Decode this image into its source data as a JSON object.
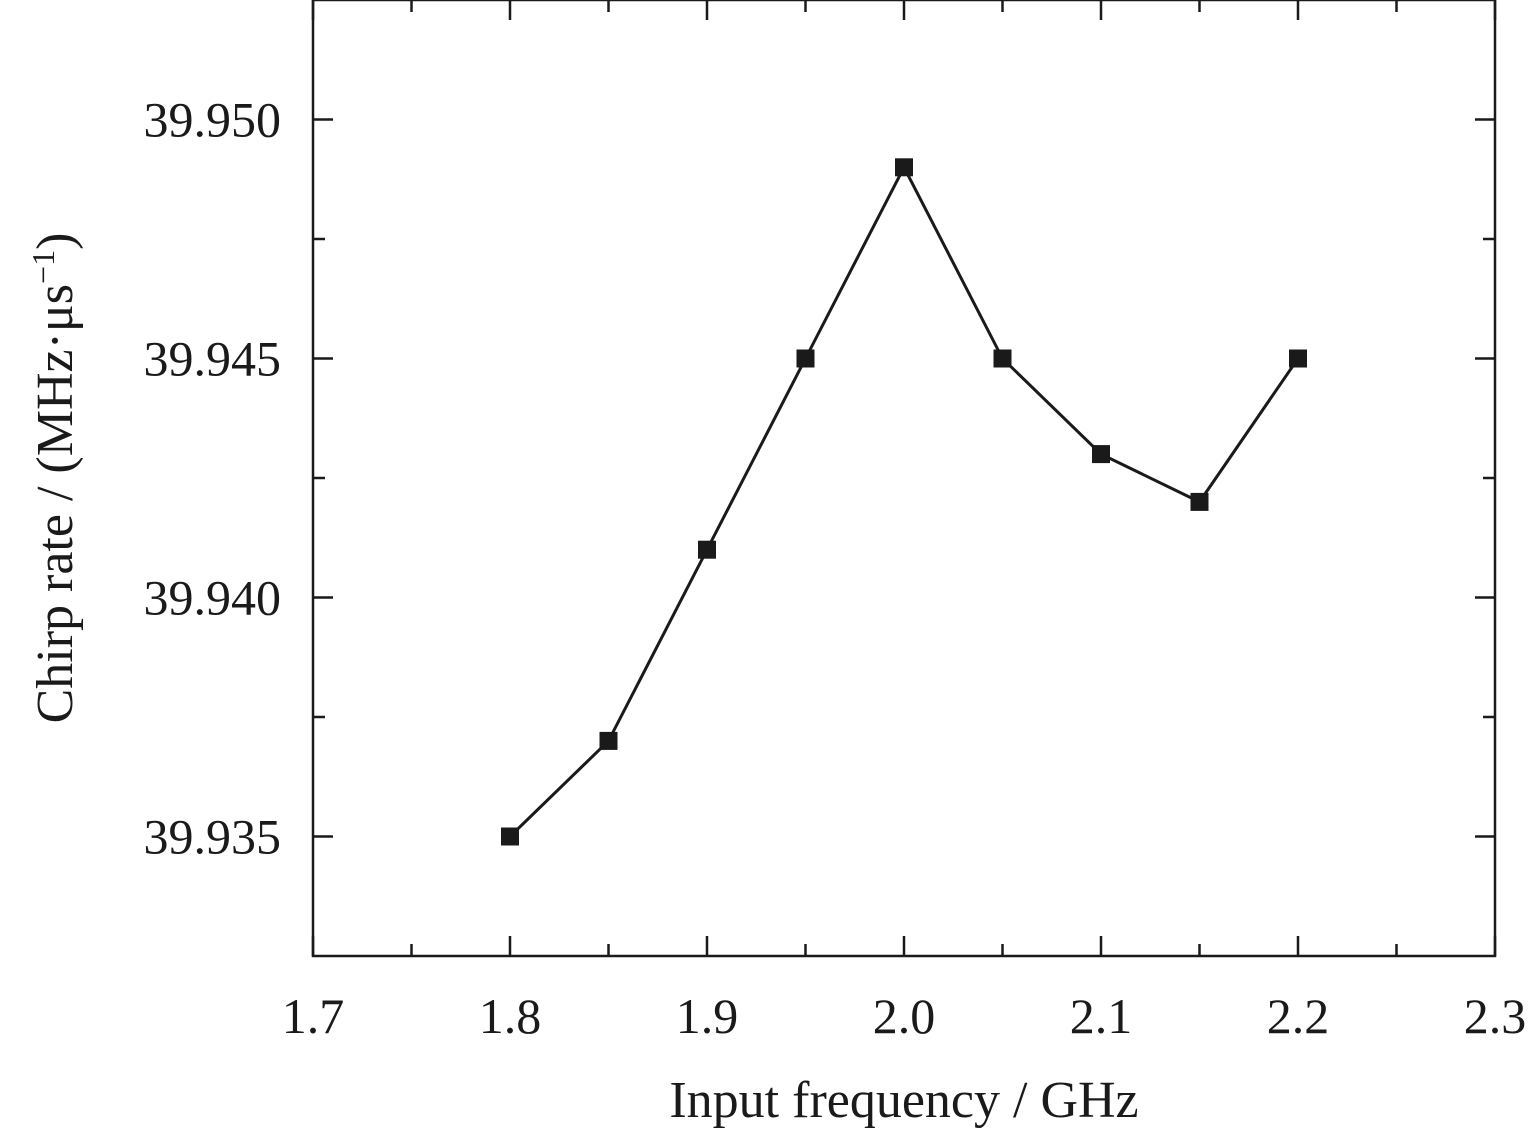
{
  "chart_data": {
    "type": "line",
    "xlabel": "Input frequency / GHz",
    "ylabel": {
      "prefix": "Chirp rate / (MHz·μs",
      "superscript": "−1",
      "suffix": ")"
    },
    "xlim": [
      1.7,
      2.3
    ],
    "ylim": [
      39.9325,
      39.9525
    ],
    "x_ticks": [
      1.7,
      1.8,
      1.9,
      2.0,
      2.1,
      2.2,
      2.3
    ],
    "x_tick_labels": [
      "1.7",
      "1.8",
      "1.9",
      "2.0",
      "2.1",
      "2.2",
      "2.3"
    ],
    "x_minor_ticks": [
      1.75,
      1.85,
      1.95,
      2.05,
      2.15,
      2.25
    ],
    "y_ticks": [
      39.935,
      39.94,
      39.945,
      39.95
    ],
    "y_tick_labels": [
      "39.935",
      "39.940",
      "39.945",
      "39.950"
    ],
    "y_minor_ticks": [
      39.9375,
      39.9425,
      39.9475
    ],
    "grid": false,
    "legend": "none",
    "marker": "square",
    "color": "#1a1a1a",
    "series": [
      {
        "x": [
          1.8,
          1.85,
          1.9,
          1.95,
          2.0,
          2.05,
          2.1,
          2.15,
          2.2
        ],
        "y": [
          39.935,
          39.937,
          39.941,
          39.945,
          39.949,
          39.945,
          39.943,
          39.942,
          39.945
        ]
      }
    ]
  }
}
